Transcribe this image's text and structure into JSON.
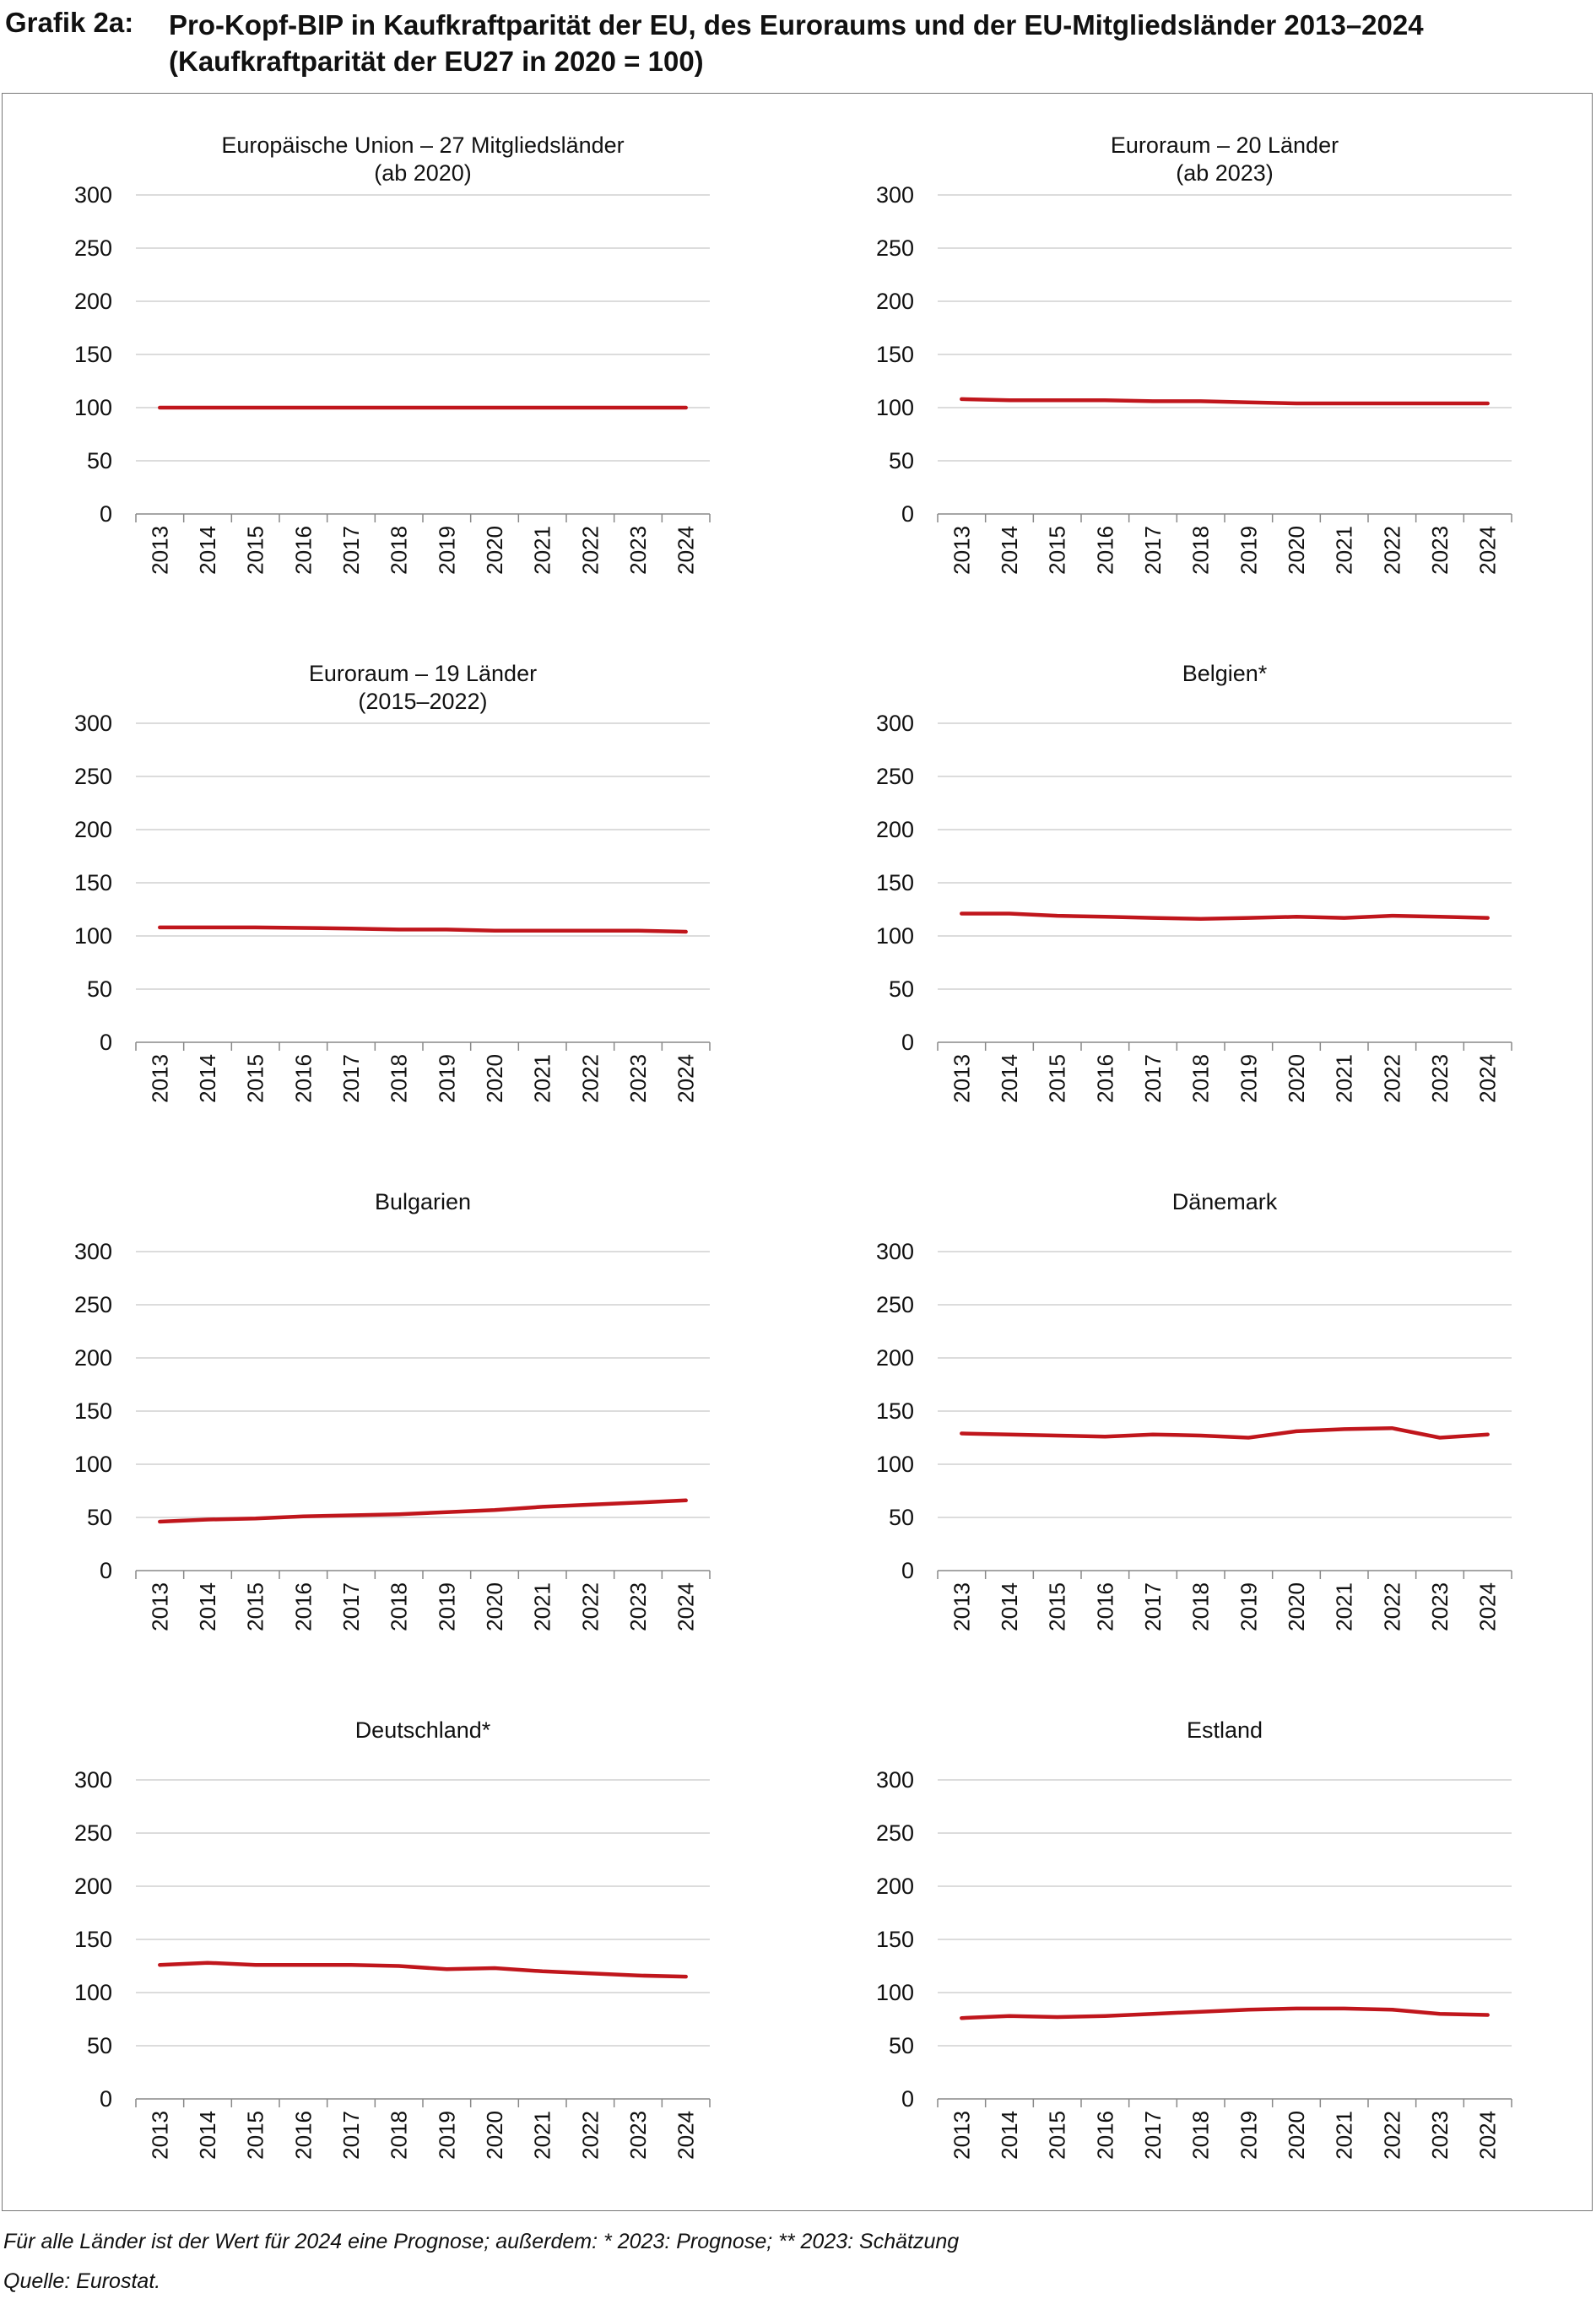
{
  "header": {
    "label": "Grafik 2a:",
    "title_line1": "Pro-Kopf-BIP in Kaufkraftparität der EU, des Euroraums und der EU-Mitgliedsländer 2013–2024",
    "title_line2": "(Kaufkraftparität der EU27 in 2020 = 100)"
  },
  "colors": {
    "series": "#C0161C",
    "grid": "#d0d0d0",
    "axis": "#888888"
  },
  "chart_data": [
    {
      "type": "line",
      "title": "Europäische Union – 27 Mitgliedsländer",
      "subtitle": "(ab 2020)",
      "x": [
        "2013",
        "2014",
        "2015",
        "2016",
        "2017",
        "2018",
        "2019",
        "2020",
        "2021",
        "2022",
        "2023",
        "2024"
      ],
      "values": [
        100,
        100,
        100,
        100,
        100,
        100,
        100,
        100,
        100,
        100,
        100,
        100
      ],
      "yticks": [
        "0",
        "50",
        "100",
        "150",
        "200",
        "250",
        "300"
      ],
      "ylim": [
        0,
        300
      ],
      "grid": true
    },
    {
      "type": "line",
      "title": "Euroraum – 20 Länder",
      "subtitle": "(ab 2023)",
      "x": [
        "2013",
        "2014",
        "2015",
        "2016",
        "2017",
        "2018",
        "2019",
        "2020",
        "2021",
        "2022",
        "2023",
        "2024"
      ],
      "values": [
        108,
        107,
        107,
        107,
        106,
        106,
        105,
        104,
        104,
        104,
        104,
        104
      ],
      "yticks": [
        "0",
        "50",
        "100",
        "150",
        "200",
        "250",
        "300"
      ],
      "ylim": [
        0,
        300
      ],
      "grid": true
    },
    {
      "type": "line",
      "title": "Euroraum – 19 Länder",
      "subtitle": "(2015–2022)",
      "x": [
        "2013",
        "2014",
        "2015",
        "2016",
        "2017",
        "2018",
        "2019",
        "2020",
        "2021",
        "2022",
        "2023",
        "2024"
      ],
      "values": [
        108,
        108,
        108,
        107.5,
        107,
        106,
        106,
        105,
        105,
        105,
        105,
        104
      ],
      "yticks": [
        "0",
        "50",
        "100",
        "150",
        "200",
        "250",
        "300"
      ],
      "ylim": [
        0,
        300
      ],
      "grid": true
    },
    {
      "type": "line",
      "title": "Belgien*",
      "subtitle": "",
      "x": [
        "2013",
        "2014",
        "2015",
        "2016",
        "2017",
        "2018",
        "2019",
        "2020",
        "2021",
        "2022",
        "2023",
        "2024"
      ],
      "values": [
        121,
        121,
        119,
        118,
        117,
        116,
        117,
        118,
        117,
        119,
        118,
        117
      ],
      "yticks": [
        "0",
        "50",
        "100",
        "150",
        "200",
        "250",
        "300"
      ],
      "ylim": [
        0,
        300
      ],
      "grid": true
    },
    {
      "type": "line",
      "title": "Bulgarien",
      "subtitle": "",
      "x": [
        "2013",
        "2014",
        "2015",
        "2016",
        "2017",
        "2018",
        "2019",
        "2020",
        "2021",
        "2022",
        "2023",
        "2024"
      ],
      "values": [
        46,
        48,
        49,
        51,
        52,
        53,
        55,
        57,
        60,
        62,
        64,
        66
      ],
      "yticks": [
        "0",
        "50",
        "100",
        "150",
        "200",
        "250",
        "300"
      ],
      "ylim": [
        0,
        300
      ],
      "grid": true
    },
    {
      "type": "line",
      "title": "Dänemark",
      "subtitle": "",
      "x": [
        "2013",
        "2014",
        "2015",
        "2016",
        "2017",
        "2018",
        "2019",
        "2020",
        "2021",
        "2022",
        "2023",
        "2024"
      ],
      "values": [
        129,
        128,
        127,
        126,
        128,
        127,
        125,
        131,
        133,
        134,
        125,
        128
      ],
      "yticks": [
        "0",
        "50",
        "100",
        "150",
        "200",
        "250",
        "300"
      ],
      "ylim": [
        0,
        300
      ],
      "grid": true
    },
    {
      "type": "line",
      "title": "Deutschland*",
      "subtitle": "",
      "x": [
        "2013",
        "2014",
        "2015",
        "2016",
        "2017",
        "2018",
        "2019",
        "2020",
        "2021",
        "2022",
        "2023",
        "2024"
      ],
      "values": [
        126,
        128,
        126,
        126,
        126,
        125,
        122,
        123,
        120,
        118,
        116,
        115
      ],
      "yticks": [
        "0",
        "50",
        "100",
        "150",
        "200",
        "250",
        "300"
      ],
      "ylim": [
        0,
        300
      ],
      "grid": true
    },
    {
      "type": "line",
      "title": "Estland",
      "subtitle": "",
      "x": [
        "2013",
        "2014",
        "2015",
        "2016",
        "2017",
        "2018",
        "2019",
        "2020",
        "2021",
        "2022",
        "2023",
        "2024"
      ],
      "values": [
        76,
        78,
        77,
        78,
        80,
        82,
        84,
        85,
        85,
        84,
        80,
        79
      ],
      "yticks": [
        "0",
        "50",
        "100",
        "150",
        "200",
        "250",
        "300"
      ],
      "ylim": [
        0,
        300
      ],
      "grid": true
    }
  ],
  "footer": {
    "note": "Für alle Länder ist der Wert für 2024 eine Prognose; außerdem: * 2023: Prognose; ** 2023: Schätzung",
    "source": "Quelle: Eurostat."
  }
}
